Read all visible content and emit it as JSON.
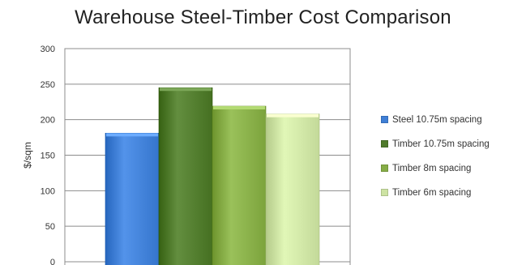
{
  "chart_data": {
    "type": "bar",
    "title": "Warehouse Steel-Timber Cost Comparison",
    "xlabel": "",
    "ylabel": "$/sqm",
    "ylim": [
      0,
      300
    ],
    "yticks": [
      0,
      50,
      100,
      150,
      200,
      250,
      300
    ],
    "grid": true,
    "legend_position": "right",
    "series": [
      {
        "name": "Steel 10.75m spacing",
        "value": 181,
        "color": "#3f7fd6"
      },
      {
        "name": "Timber 10.75m spacing",
        "value": 245,
        "color": "#4f7a2b"
      },
      {
        "name": "Timber 8m spacing",
        "value": 219,
        "color": "#86ad46"
      },
      {
        "name": "Timber 6m spacing",
        "value": 208,
        "color": "#cde3a3"
      }
    ]
  }
}
